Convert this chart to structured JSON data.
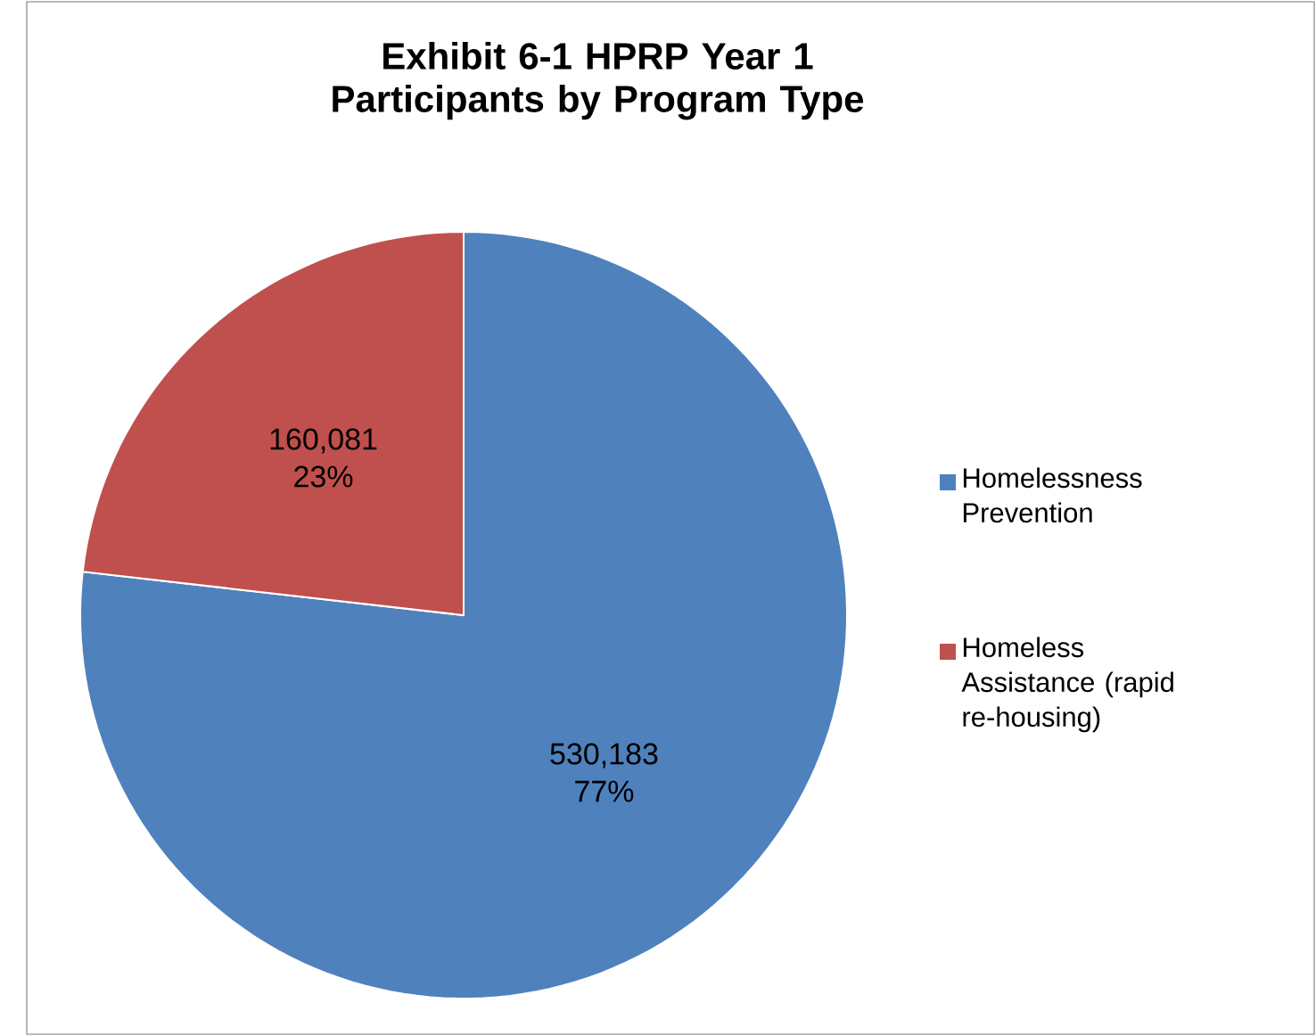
{
  "chart_data": {
    "type": "pie",
    "title": "Exhibit 6-1 HPRP Year 1 Participants by Program Type",
    "categories": [
      "Homelessness Prevention",
      "Homeless Assistance (rapid re-housing)"
    ],
    "values": [
      530183,
      160081
    ],
    "colors": [
      "#4f81bd",
      "#c0504d"
    ],
    "value_labels": [
      "530,183 77%",
      "160,081 23%"
    ],
    "legend": "right"
  }
}
